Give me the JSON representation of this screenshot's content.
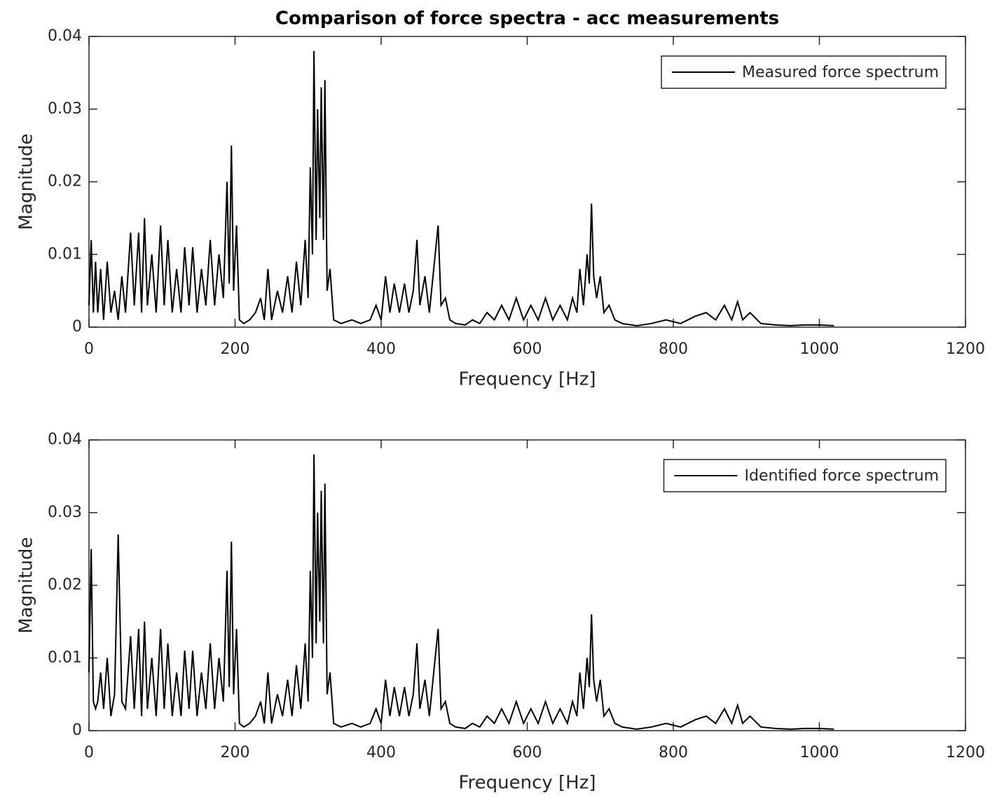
{
  "chart_data": [
    {
      "type": "line",
      "title": "Comparison of force spectra - acc measurements",
      "xlabel": "Frequency [Hz]",
      "ylabel": "Magnitude",
      "x": [
        0,
        3,
        6,
        9,
        12,
        16,
        20,
        25,
        30,
        35,
        40,
        45,
        50,
        57,
        62,
        68,
        72,
        76,
        80,
        86,
        92,
        98,
        103,
        108,
        114,
        120,
        126,
        131,
        137,
        142,
        148,
        154,
        160,
        166,
        172,
        178,
        184,
        189,
        192,
        195,
        198,
        202,
        206,
        212,
        220,
        228,
        235,
        240,
        245,
        250,
        258,
        265,
        272,
        278,
        284,
        290,
        296,
        300,
        303,
        306,
        308,
        311,
        313,
        316,
        318,
        321,
        323,
        326,
        330,
        335,
        345,
        360,
        372,
        385,
        393,
        400,
        406,
        412,
        418,
        425,
        432,
        438,
        444,
        449,
        453,
        460,
        466,
        472,
        478,
        482,
        488,
        494,
        502,
        515,
        525,
        535,
        545,
        555,
        565,
        575,
        585,
        595,
        605,
        615,
        625,
        635,
        645,
        655,
        662,
        668,
        672,
        677,
        682,
        685,
        688,
        691,
        695,
        700,
        705,
        712,
        720,
        730,
        750,
        770,
        790,
        810,
        830,
        845,
        858,
        870,
        880,
        888,
        895,
        905,
        920,
        940,
        960,
        980,
        1000,
        1020
      ],
      "series": [
        {
          "name": "Measured force spectrum",
          "color": "#000000",
          "values": [
            0.003,
            0.012,
            0.002,
            0.009,
            0.002,
            0.008,
            0.001,
            0.009,
            0.002,
            0.005,
            0.001,
            0.007,
            0.002,
            0.013,
            0.003,
            0.013,
            0.002,
            0.015,
            0.003,
            0.01,
            0.002,
            0.014,
            0.003,
            0.012,
            0.002,
            0.008,
            0.002,
            0.011,
            0.003,
            0.011,
            0.002,
            0.008,
            0.003,
            0.012,
            0.003,
            0.01,
            0.004,
            0.02,
            0.006,
            0.025,
            0.005,
            0.014,
            0.001,
            0.0005,
            0.001,
            0.002,
            0.004,
            0.001,
            0.008,
            0.001,
            0.005,
            0.002,
            0.007,
            0.002,
            0.009,
            0.003,
            0.012,
            0.004,
            0.022,
            0.01,
            0.038,
            0.012,
            0.03,
            0.015,
            0.033,
            0.012,
            0.034,
            0.005,
            0.008,
            0.001,
            0.0005,
            0.001,
            0.0005,
            0.001,
            0.003,
            0.001,
            0.007,
            0.002,
            0.006,
            0.002,
            0.006,
            0.002,
            0.005,
            0.012,
            0.003,
            0.007,
            0.002,
            0.008,
            0.014,
            0.003,
            0.004,
            0.001,
            0.0005,
            0.0003,
            0.001,
            0.0005,
            0.002,
            0.001,
            0.003,
            0.001,
            0.004,
            0.001,
            0.003,
            0.001,
            0.004,
            0.001,
            0.003,
            0.001,
            0.004,
            0.002,
            0.008,
            0.003,
            0.01,
            0.006,
            0.017,
            0.007,
            0.004,
            0.007,
            0.002,
            0.003,
            0.001,
            0.0005,
            0.0002,
            0.0005,
            0.001,
            0.0005,
            0.0015,
            0.002,
            0.001,
            0.003,
            0.001,
            0.0035,
            0.001,
            0.002,
            0.0005,
            0.0003,
            0.0002,
            0.0003,
            0.0003,
            0.0002
          ]
        }
      ],
      "xlim": [
        0,
        1200
      ],
      "ylim": [
        0,
        0.04
      ],
      "xticks": [
        0,
        200,
        400,
        600,
        800,
        1000,
        1200
      ],
      "yticks": [
        0,
        0.01,
        0.02,
        0.03,
        0.04
      ],
      "legend": "upper right"
    },
    {
      "type": "line",
      "xlabel": "Frequency [Hz]",
      "ylabel": "Magnitude",
      "x": [
        0,
        3,
        6,
        9,
        12,
        16,
        20,
        25,
        30,
        35,
        40,
        45,
        50,
        57,
        62,
        68,
        72,
        76,
        80,
        86,
        92,
        98,
        103,
        108,
        114,
        120,
        126,
        131,
        137,
        142,
        148,
        154,
        160,
        166,
        172,
        178,
        184,
        189,
        192,
        195,
        198,
        202,
        206,
        212,
        220,
        228,
        235,
        240,
        245,
        250,
        258,
        265,
        272,
        278,
        284,
        290,
        296,
        300,
        303,
        306,
        308,
        311,
        313,
        316,
        318,
        321,
        323,
        326,
        330,
        335,
        345,
        360,
        372,
        385,
        393,
        400,
        406,
        412,
        418,
        425,
        432,
        438,
        444,
        449,
        453,
        460,
        466,
        472,
        478,
        482,
        488,
        494,
        502,
        515,
        525,
        535,
        545,
        555,
        565,
        575,
        585,
        595,
        605,
        615,
        625,
        635,
        645,
        655,
        662,
        668,
        672,
        677,
        682,
        685,
        688,
        691,
        695,
        700,
        705,
        712,
        720,
        730,
        750,
        770,
        790,
        810,
        830,
        845,
        858,
        870,
        880,
        888,
        895,
        905,
        920,
        940,
        960,
        980,
        1000,
        1020
      ],
      "series": [
        {
          "name": "Identified force spectrum",
          "color": "#000000",
          "values": [
            0.008,
            0.025,
            0.004,
            0.003,
            0.004,
            0.008,
            0.003,
            0.01,
            0.002,
            0.005,
            0.027,
            0.004,
            0.003,
            0.013,
            0.003,
            0.014,
            0.002,
            0.015,
            0.003,
            0.01,
            0.002,
            0.014,
            0.003,
            0.012,
            0.002,
            0.008,
            0.002,
            0.011,
            0.003,
            0.011,
            0.002,
            0.008,
            0.003,
            0.012,
            0.003,
            0.01,
            0.004,
            0.022,
            0.006,
            0.026,
            0.005,
            0.014,
            0.001,
            0.0005,
            0.001,
            0.002,
            0.004,
            0.001,
            0.008,
            0.001,
            0.005,
            0.002,
            0.007,
            0.002,
            0.009,
            0.003,
            0.012,
            0.004,
            0.022,
            0.01,
            0.038,
            0.012,
            0.03,
            0.015,
            0.033,
            0.012,
            0.034,
            0.005,
            0.008,
            0.001,
            0.0005,
            0.001,
            0.0005,
            0.001,
            0.003,
            0.001,
            0.007,
            0.002,
            0.006,
            0.002,
            0.006,
            0.002,
            0.005,
            0.012,
            0.003,
            0.007,
            0.002,
            0.008,
            0.014,
            0.003,
            0.004,
            0.001,
            0.0005,
            0.0003,
            0.001,
            0.0005,
            0.002,
            0.001,
            0.003,
            0.001,
            0.004,
            0.001,
            0.003,
            0.001,
            0.004,
            0.001,
            0.003,
            0.001,
            0.004,
            0.002,
            0.008,
            0.003,
            0.01,
            0.006,
            0.016,
            0.007,
            0.004,
            0.007,
            0.002,
            0.003,
            0.001,
            0.0005,
            0.0002,
            0.0005,
            0.001,
            0.0005,
            0.0015,
            0.002,
            0.001,
            0.003,
            0.001,
            0.0035,
            0.001,
            0.002,
            0.0005,
            0.0003,
            0.0002,
            0.0003,
            0.0003,
            0.0002
          ]
        }
      ],
      "xlim": [
        0,
        1200
      ],
      "ylim": [
        0,
        0.04
      ],
      "xticks": [
        0,
        200,
        400,
        600,
        800,
        1000,
        1200
      ],
      "yticks": [
        0,
        0.01,
        0.02,
        0.03,
        0.04
      ],
      "legend": "upper right"
    }
  ]
}
